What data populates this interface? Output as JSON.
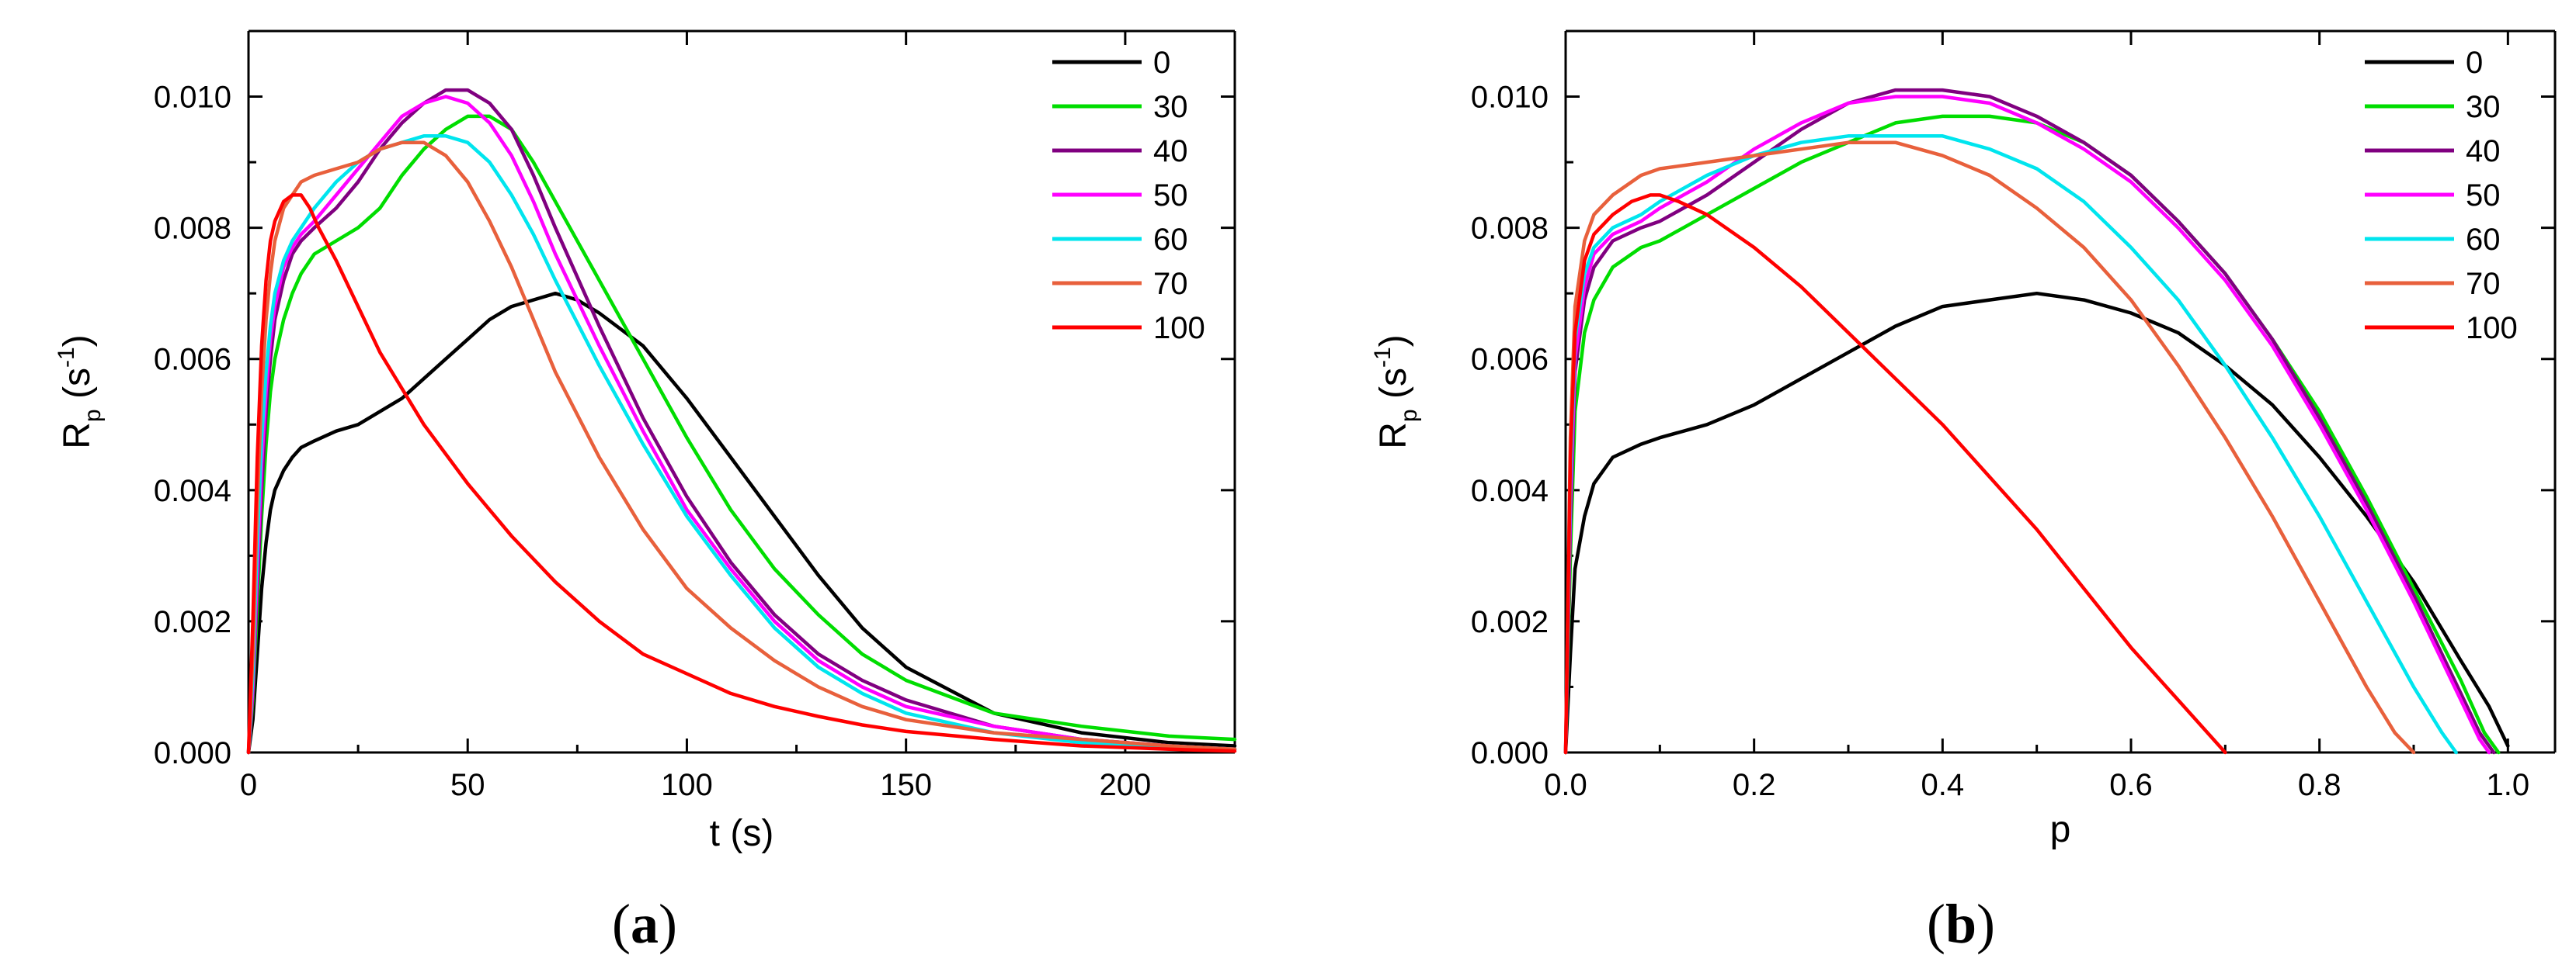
{
  "chart_data": [
    {
      "type": "line",
      "panel_label": "a",
      "xlabel": "t (s)",
      "ylabel": "R",
      "ylabel_sub": "p",
      "ylabel_unit_open": " (s",
      "ylabel_unit_sup": "-1",
      "ylabel_unit_close": ")",
      "xlim": [
        0,
        225
      ],
      "ylim": [
        0,
        0.011
      ],
      "xticks": [
        0,
        50,
        100,
        150,
        200
      ],
      "xtick_labels": [
        "0",
        "50",
        "100",
        "150",
        "200"
      ],
      "yticks": [
        0,
        0.002,
        0.004,
        0.006,
        0.008,
        0.01
      ],
      "ytick_labels": [
        "0.000",
        "0.002",
        "0.004",
        "0.006",
        "0.008",
        "0.010"
      ],
      "legend_position": "top-right",
      "series": [
        {
          "name": "0",
          "color": "#000000",
          "x": [
            0,
            1,
            2,
            3,
            4,
            5,
            6,
            8,
            10,
            12,
            15,
            20,
            25,
            30,
            35,
            40,
            45,
            50,
            55,
            60,
            65,
            70,
            75,
            80,
            90,
            100,
            110,
            120,
            130,
            140,
            150,
            170,
            190,
            210,
            225
          ],
          "y": [
            0,
            0.0005,
            0.0015,
            0.0025,
            0.0032,
            0.0037,
            0.004,
            0.0043,
            0.0045,
            0.00465,
            0.00475,
            0.0049,
            0.005,
            0.0052,
            0.0054,
            0.0057,
            0.006,
            0.0063,
            0.0066,
            0.0068,
            0.0069,
            0.007,
            0.0069,
            0.0067,
            0.0062,
            0.0054,
            0.0045,
            0.0036,
            0.0027,
            0.0019,
            0.0013,
            0.0006,
            0.0003,
            0.00015,
            0.0001
          ]
        },
        {
          "name": "30",
          "color": "#00dd00",
          "x": [
            0,
            1,
            2,
            3,
            4,
            5,
            6,
            8,
            10,
            12,
            15,
            20,
            25,
            30,
            35,
            40,
            45,
            50,
            55,
            60,
            65,
            70,
            80,
            90,
            100,
            110,
            120,
            130,
            140,
            150,
            170,
            190,
            210,
            225
          ],
          "y": [
            0,
            0.0008,
            0.0022,
            0.0036,
            0.0047,
            0.0055,
            0.006,
            0.0066,
            0.007,
            0.0073,
            0.0076,
            0.0078,
            0.008,
            0.0083,
            0.0088,
            0.0092,
            0.0095,
            0.0097,
            0.0097,
            0.0095,
            0.009,
            0.0084,
            0.0072,
            0.006,
            0.0048,
            0.0037,
            0.0028,
            0.0021,
            0.0015,
            0.0011,
            0.0006,
            0.0004,
            0.00025,
            0.0002
          ]
        },
        {
          "name": "40",
          "color": "#800080",
          "x": [
            0,
            1,
            2,
            3,
            4,
            5,
            6,
            8,
            10,
            12,
            15,
            20,
            25,
            30,
            35,
            40,
            45,
            50,
            55,
            60,
            65,
            70,
            80,
            90,
            100,
            110,
            120,
            130,
            140,
            150,
            170,
            190,
            210,
            225
          ],
          "y": [
            0,
            0.0009,
            0.0025,
            0.004,
            0.0052,
            0.006,
            0.0066,
            0.0072,
            0.0076,
            0.0078,
            0.008,
            0.0083,
            0.0087,
            0.0092,
            0.0096,
            0.0099,
            0.0101,
            0.0101,
            0.0099,
            0.0095,
            0.0088,
            0.008,
            0.0065,
            0.0051,
            0.0039,
            0.0029,
            0.0021,
            0.0015,
            0.0011,
            0.0008,
            0.0004,
            0.0002,
            0.0001,
            5e-05
          ]
        },
        {
          "name": "50",
          "color": "#ff00ff",
          "x": [
            0,
            1,
            2,
            3,
            4,
            5,
            6,
            8,
            10,
            12,
            15,
            20,
            25,
            30,
            35,
            40,
            45,
            50,
            55,
            60,
            65,
            70,
            80,
            90,
            100,
            110,
            120,
            130,
            140,
            150,
            170,
            190,
            210,
            225
          ],
          "y": [
            0,
            0.001,
            0.0028,
            0.0044,
            0.0055,
            0.0063,
            0.0068,
            0.0074,
            0.0077,
            0.0079,
            0.0081,
            0.0085,
            0.0089,
            0.0093,
            0.0097,
            0.0099,
            0.01,
            0.0099,
            0.0096,
            0.0091,
            0.0084,
            0.0076,
            0.0062,
            0.0049,
            0.0037,
            0.0028,
            0.002,
            0.0014,
            0.001,
            0.0007,
            0.0004,
            0.0002,
            0.0001,
            5e-05
          ]
        },
        {
          "name": "60",
          "color": "#00e5ee",
          "x": [
            0,
            1,
            2,
            3,
            4,
            5,
            6,
            8,
            10,
            12,
            15,
            20,
            25,
            30,
            35,
            40,
            45,
            50,
            55,
            60,
            65,
            70,
            80,
            90,
            100,
            110,
            120,
            130,
            140,
            150,
            170,
            190,
            210,
            225
          ],
          "y": [
            0,
            0.0012,
            0.0032,
            0.0048,
            0.0058,
            0.0065,
            0.007,
            0.0075,
            0.0078,
            0.008,
            0.0083,
            0.0087,
            0.009,
            0.0092,
            0.0093,
            0.0094,
            0.0094,
            0.0093,
            0.009,
            0.0085,
            0.0079,
            0.0072,
            0.0059,
            0.0047,
            0.0036,
            0.0027,
            0.0019,
            0.0013,
            0.0009,
            0.0006,
            0.0003,
            0.00015,
            0.0001,
            5e-05
          ]
        },
        {
          "name": "70",
          "color": "#e8603c",
          "x": [
            0,
            1,
            2,
            3,
            4,
            5,
            6,
            8,
            10,
            12,
            15,
            20,
            25,
            30,
            35,
            40,
            45,
            50,
            55,
            60,
            65,
            70,
            80,
            90,
            100,
            110,
            120,
            130,
            140,
            150,
            170,
            190,
            210,
            225
          ],
          "y": [
            0,
            0.0015,
            0.0038,
            0.0055,
            0.0066,
            0.0073,
            0.0078,
            0.0083,
            0.0085,
            0.0087,
            0.0088,
            0.0089,
            0.009,
            0.0092,
            0.0093,
            0.0093,
            0.0091,
            0.0087,
            0.0081,
            0.0074,
            0.0066,
            0.0058,
            0.0045,
            0.0034,
            0.0025,
            0.0019,
            0.0014,
            0.001,
            0.0007,
            0.0005,
            0.0003,
            0.0002,
            0.0001,
            5e-05
          ]
        },
        {
          "name": "100",
          "color": "#ff0000",
          "x": [
            0,
            1,
            2,
            3,
            4,
            5,
            6,
            8,
            10,
            12,
            14,
            16,
            20,
            25,
            30,
            40,
            50,
            60,
            70,
            80,
            90,
            100,
            110,
            120,
            130,
            140,
            150,
            170,
            190,
            210,
            225
          ],
          "y": [
            0,
            0.002,
            0.0045,
            0.0062,
            0.0072,
            0.0078,
            0.0081,
            0.0084,
            0.0085,
            0.0085,
            0.0083,
            0.008,
            0.0075,
            0.0068,
            0.0061,
            0.005,
            0.0041,
            0.0033,
            0.0026,
            0.002,
            0.0015,
            0.0012,
            0.0009,
            0.0007,
            0.00055,
            0.00042,
            0.00032,
            0.0002,
            0.0001,
            5e-05,
            2e-05
          ]
        }
      ]
    },
    {
      "type": "line",
      "panel_label": "b",
      "xlabel": "p",
      "ylabel": "R",
      "ylabel_sub": "p",
      "ylabel_unit_open": " (s",
      "ylabel_unit_sup": "-1",
      "ylabel_unit_close": ")",
      "xlim": [
        0,
        1.05
      ],
      "ylim": [
        0,
        0.011
      ],
      "xticks": [
        0,
        0.2,
        0.4,
        0.6,
        0.8,
        1.0
      ],
      "xtick_labels": [
        "0.0",
        "0.2",
        "0.4",
        "0.6",
        "0.8",
        "1.0"
      ],
      "yticks": [
        0,
        0.002,
        0.004,
        0.006,
        0.008,
        0.01
      ],
      "ytick_labels": [
        "0.000",
        "0.002",
        "0.004",
        "0.006",
        "0.008",
        "0.010"
      ],
      "legend_position": "top-right",
      "series": [
        {
          "name": "0",
          "color": "#000000",
          "x": [
            0,
            0.005,
            0.01,
            0.02,
            0.03,
            0.05,
            0.08,
            0.1,
            0.15,
            0.2,
            0.25,
            0.3,
            0.35,
            0.4,
            0.45,
            0.5,
            0.55,
            0.6,
            0.65,
            0.7,
            0.75,
            0.8,
            0.85,
            0.9,
            0.95,
            0.98,
            1.0
          ],
          "y": [
            0,
            0.0015,
            0.0028,
            0.0036,
            0.0041,
            0.0045,
            0.0047,
            0.0048,
            0.005,
            0.0053,
            0.0057,
            0.0061,
            0.0065,
            0.0068,
            0.0069,
            0.007,
            0.0069,
            0.0067,
            0.0064,
            0.0059,
            0.0053,
            0.0045,
            0.0036,
            0.0026,
            0.0014,
            0.0007,
            0.0001
          ]
        },
        {
          "name": "30",
          "color": "#00dd00",
          "x": [
            0,
            0.005,
            0.01,
            0.02,
            0.03,
            0.05,
            0.08,
            0.1,
            0.15,
            0.2,
            0.25,
            0.3,
            0.35,
            0.4,
            0.45,
            0.5,
            0.55,
            0.6,
            0.65,
            0.7,
            0.75,
            0.8,
            0.85,
            0.9,
            0.95,
            0.975,
            0.99
          ],
          "y": [
            0,
            0.003,
            0.0052,
            0.0064,
            0.0069,
            0.0074,
            0.0077,
            0.0078,
            0.0082,
            0.0086,
            0.009,
            0.0093,
            0.0096,
            0.0097,
            0.0097,
            0.0096,
            0.0093,
            0.0088,
            0.0081,
            0.0073,
            0.0063,
            0.0052,
            0.0039,
            0.0025,
            0.0011,
            0.0003,
            0
          ]
        },
        {
          "name": "40",
          "color": "#800080",
          "x": [
            0,
            0.005,
            0.01,
            0.02,
            0.03,
            0.05,
            0.08,
            0.1,
            0.15,
            0.2,
            0.25,
            0.3,
            0.35,
            0.4,
            0.45,
            0.5,
            0.55,
            0.6,
            0.65,
            0.7,
            0.75,
            0.8,
            0.85,
            0.9,
            0.95,
            0.97,
            0.985
          ],
          "y": [
            0,
            0.0035,
            0.0058,
            0.0069,
            0.0074,
            0.0078,
            0.008,
            0.0081,
            0.0085,
            0.009,
            0.0095,
            0.0099,
            0.0101,
            0.0101,
            0.01,
            0.0097,
            0.0093,
            0.0088,
            0.0081,
            0.0073,
            0.0063,
            0.0051,
            0.0038,
            0.0024,
            0.0009,
            0.0003,
            0
          ]
        },
        {
          "name": "50",
          "color": "#ff00ff",
          "x": [
            0,
            0.005,
            0.01,
            0.02,
            0.03,
            0.05,
            0.08,
            0.1,
            0.15,
            0.2,
            0.25,
            0.3,
            0.35,
            0.4,
            0.45,
            0.5,
            0.55,
            0.6,
            0.65,
            0.7,
            0.75,
            0.8,
            0.85,
            0.9,
            0.95,
            0.97,
            0.98
          ],
          "y": [
            0,
            0.0038,
            0.006,
            0.0071,
            0.0076,
            0.0079,
            0.0081,
            0.0083,
            0.0087,
            0.0092,
            0.0096,
            0.0099,
            0.01,
            0.01,
            0.0099,
            0.0096,
            0.0092,
            0.0087,
            0.008,
            0.0072,
            0.0062,
            0.005,
            0.0037,
            0.0023,
            0.0008,
            0.0002,
            0
          ]
        },
        {
          "name": "60",
          "color": "#00e5ee",
          "x": [
            0,
            0.005,
            0.01,
            0.02,
            0.03,
            0.05,
            0.08,
            0.1,
            0.15,
            0.2,
            0.25,
            0.3,
            0.35,
            0.4,
            0.45,
            0.5,
            0.55,
            0.6,
            0.65,
            0.7,
            0.75,
            0.8,
            0.85,
            0.9,
            0.93,
            0.945
          ],
          "y": [
            0,
            0.0042,
            0.0063,
            0.0073,
            0.0077,
            0.008,
            0.0082,
            0.0084,
            0.0088,
            0.0091,
            0.0093,
            0.0094,
            0.0094,
            0.0094,
            0.0092,
            0.0089,
            0.0084,
            0.0077,
            0.0069,
            0.0059,
            0.0048,
            0.0036,
            0.0023,
            0.001,
            0.0003,
            0
          ]
        },
        {
          "name": "70",
          "color": "#e8603c",
          "x": [
            0,
            0.005,
            0.01,
            0.02,
            0.03,
            0.05,
            0.08,
            0.1,
            0.15,
            0.2,
            0.25,
            0.3,
            0.35,
            0.4,
            0.45,
            0.5,
            0.55,
            0.6,
            0.65,
            0.7,
            0.75,
            0.8,
            0.85,
            0.88,
            0.9
          ],
          "y": [
            0,
            0.0048,
            0.0068,
            0.0078,
            0.0082,
            0.0085,
            0.0088,
            0.0089,
            0.009,
            0.0091,
            0.0092,
            0.0093,
            0.0093,
            0.0091,
            0.0088,
            0.0083,
            0.0077,
            0.0069,
            0.0059,
            0.0048,
            0.0036,
            0.0023,
            0.001,
            0.0003,
            0
          ]
        },
        {
          "name": "100",
          "color": "#ff0000",
          "x": [
            0,
            0.005,
            0.01,
            0.02,
            0.03,
            0.05,
            0.07,
            0.09,
            0.1,
            0.12,
            0.15,
            0.2,
            0.25,
            0.3,
            0.35,
            0.4,
            0.45,
            0.5,
            0.55,
            0.6,
            0.65,
            0.7
          ],
          "y": [
            0,
            0.0045,
            0.0064,
            0.0075,
            0.0079,
            0.0082,
            0.0084,
            0.0085,
            0.0085,
            0.0084,
            0.0082,
            0.0077,
            0.0071,
            0.0064,
            0.0057,
            0.005,
            0.0042,
            0.0034,
            0.0025,
            0.0016,
            0.0008,
            0
          ]
        }
      ]
    }
  ]
}
